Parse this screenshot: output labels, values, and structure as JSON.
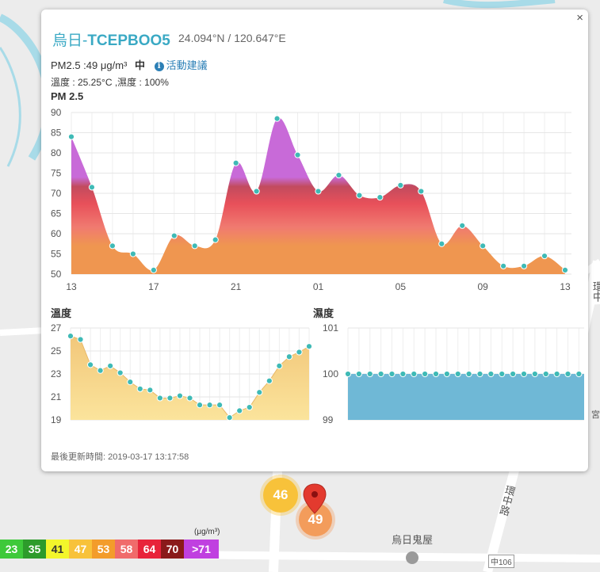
{
  "popup": {
    "site_prefix": "烏日-",
    "site_id": "TCEPBOO5",
    "coords": "24.094°N / 120.647°E",
    "pm25_text": "PM2.5 :49 μg/m³",
    "level": "中",
    "info_icon": "i",
    "advice_link": "活動建議",
    "temp_humidity": "溫度 : 25.25°C ,濕度 : 100%",
    "close": "×",
    "updated": "最後更新時間: 2019-03-17 13:17:58"
  },
  "labels": {
    "pm_chart": "PM 2.5",
    "temp_chart": "溫度",
    "hum_chart": "濕度"
  },
  "markers": {
    "cluster_a": "46",
    "cluster_b": "49"
  },
  "map_labels": {
    "haunted_house": "烏日鬼屋",
    "road": "中106",
    "ring_road": "環中路",
    "ring_road_right": "環中",
    "palace": "宮"
  },
  "legend": {
    "unit": "(μg/m³)",
    "items": [
      {
        "label": "23",
        "color": "#3ec93a"
      },
      {
        "label": "35",
        "color": "#2d9b2b"
      },
      {
        "label": "41",
        "color": "#f3f62b"
      },
      {
        "label": "47",
        "color": "#f8c23a"
      },
      {
        "label": "53",
        "color": "#f39c2b"
      },
      {
        "label": "58",
        "color": "#f06b6b"
      },
      {
        "label": "64",
        "color": "#e8233a"
      },
      {
        "label": "70",
        "color": "#8a1a1a"
      },
      {
        "label": ">71",
        "color": "#c040e0"
      }
    ]
  },
  "chart_data": [
    {
      "type": "area",
      "title": "PM 2.5",
      "ylim": [
        50,
        90
      ],
      "yticks": [
        50,
        55,
        60,
        65,
        70,
        75,
        80,
        85,
        90
      ],
      "xticks": [
        {
          "i": 0,
          "label": "13"
        },
        {
          "i": 4,
          "label": "17"
        },
        {
          "i": 8,
          "label": "21"
        },
        {
          "i": 12,
          "label": "01"
        },
        {
          "i": 16,
          "label": "05"
        },
        {
          "i": 20,
          "label": "09"
        },
        {
          "i": 24,
          "label": "13"
        }
      ],
      "values": [
        84,
        71.5,
        57,
        55,
        51,
        59.5,
        57,
        58.5,
        77.5,
        70.5,
        88.5,
        79.5,
        70.5,
        74.5,
        69.5,
        69,
        72,
        70.5,
        57.5,
        62,
        57,
        52,
        52,
        54.5,
        51
      ],
      "grid": true
    },
    {
      "type": "area",
      "title": "溫度",
      "ylim": [
        19,
        27
      ],
      "yticks": [
        19,
        21,
        23,
        25,
        27
      ],
      "values": [
        26.3,
        26,
        23.8,
        23.3,
        23.7,
        23.1,
        22.3,
        21.7,
        21.6,
        20.9,
        20.9,
        21.1,
        20.9,
        20.3,
        20.3,
        20.3,
        19.2,
        19.8,
        20.1,
        21.4,
        22.4,
        23.7,
        24.5,
        24.9,
        25.4
      ],
      "grid": true
    },
    {
      "type": "bar",
      "title": "濕度",
      "ylim": [
        99,
        101
      ],
      "yticks": [
        99,
        100,
        101
      ],
      "values": [
        100,
        100,
        100,
        100,
        100,
        100,
        100,
        100,
        100,
        100,
        100,
        100,
        100,
        100,
        100,
        100,
        100,
        100,
        100,
        100,
        100,
        100,
        100,
        100,
        100
      ],
      "grid": true
    }
  ]
}
